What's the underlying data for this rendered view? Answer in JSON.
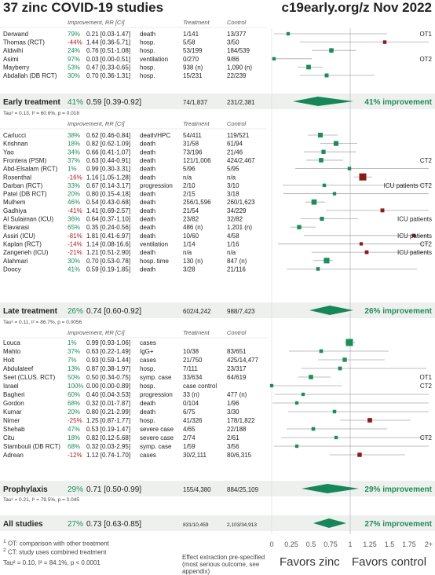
{
  "header": {
    "title": "37 zinc COVID-19 studies",
    "site": "c19early.org/z Nov 2022"
  },
  "columns": {
    "improvement": "Improvement, RR [CI]",
    "treatment": "Treatment",
    "control": "Control"
  },
  "chart_data": {
    "type": "forest",
    "x_ticks": [
      "0",
      "0.25",
      "0.5",
      "0.75",
      "1",
      "1.25",
      "1.5",
      "1.75",
      "2+"
    ],
    "x_range": [
      0,
      2
    ],
    "groups": [
      {
        "name": "Early treatment",
        "studies": [
          {
            "name": "Derwand",
            "improvement": "79%",
            "rr_text": "0.21 [0.03-1.47]",
            "rr": 0.21,
            "lo": 0.03,
            "hi": 1.47,
            "outcome": "death",
            "treatment": "1/141",
            "control": "13/377",
            "note": "OT1"
          },
          {
            "name": "Thomas (RCT)",
            "improvement": "-44%",
            "rr_text": "1.44 [0.36-5.71]",
            "rr": 1.44,
            "lo": 0.36,
            "hi": 5.71,
            "outcome": "hosp.",
            "treatment": "5/58",
            "control": "3/50",
            "note": ""
          },
          {
            "name": "Aldwihi",
            "improvement": "24%",
            "rr_text": "0.76 [0.51-1.08]",
            "rr": 0.76,
            "lo": 0.51,
            "hi": 1.08,
            "outcome": "hosp.",
            "treatment": "53/199",
            "control": "184/539",
            "note": ""
          },
          {
            "name": "Asimi",
            "improvement": "97%",
            "rr_text": "0.03 [0.00-0.51]",
            "rr": 0.03,
            "lo": 0.0,
            "hi": 0.51,
            "outcome": "ventilation",
            "treatment": "0/270",
            "control": "9/86",
            "note": "OT2"
          },
          {
            "name": "Mayberry",
            "improvement": "53%",
            "rr_text": "0.47 [0.33-0.65]",
            "rr": 0.47,
            "lo": 0.33,
            "hi": 0.65,
            "outcome": "hosp.",
            "treatment": "938 (n)",
            "control": "1,090 (n)",
            "note": ""
          },
          {
            "name": "Abdallah (DB RCT)",
            "improvement": "30%",
            "rr_text": "0.70 [0.36-1.31]",
            "rr": 0.7,
            "lo": 0.36,
            "hi": 1.31,
            "outcome": "hosp.",
            "treatment": "15/231",
            "control": "22/239",
            "note": ""
          }
        ],
        "summary": {
          "label": "Early treatment",
          "improvement": "41%",
          "rr_text": "0.59 [0.39-0.92]",
          "rr": 0.59,
          "lo": 0.39,
          "hi": 0.92,
          "treatment": "74/1,837",
          "control": "231/2,381",
          "result": "41% improvement"
        },
        "tau": "Tau² = 0.13, I² = 60.6%, p = 0.018"
      },
      {
        "name": "Late treatment",
        "studies": [
          {
            "name": "Carlucci",
            "improvement": "38%",
            "rr_text": "0.62 [0.46-0.84]",
            "rr": 0.62,
            "lo": 0.46,
            "hi": 0.84,
            "outcome": "death/HPC",
            "treatment": "54/411",
            "control": "119/521",
            "note": ""
          },
          {
            "name": "Krishnan",
            "improvement": "18%",
            "rr_text": "0.82 [0.62-1.09]",
            "rr": 0.82,
            "lo": 0.62,
            "hi": 1.09,
            "outcome": "death",
            "treatment": "31/58",
            "control": "61/94",
            "note": ""
          },
          {
            "name": "Yao",
            "improvement": "34%",
            "rr_text": "0.66 [0.41-1.07]",
            "rr": 0.66,
            "lo": 0.41,
            "hi": 1.07,
            "outcome": "death",
            "treatment": "73/196",
            "control": "21/46",
            "note": ""
          },
          {
            "name": "Frontera (PSM)",
            "improvement": "37%",
            "rr_text": "0.63 [0.44-0.91]",
            "rr": 0.63,
            "lo": 0.44,
            "hi": 0.91,
            "outcome": "death",
            "treatment": "121/1,006",
            "control": "424/2,467",
            "note": "CT2"
          },
          {
            "name": "Abd-Elsalam (RCT)",
            "improvement": "1%",
            "rr_text": "0.99 [0.30-3.31]",
            "rr": 0.99,
            "lo": 0.3,
            "hi": 3.31,
            "outcome": "death",
            "treatment": "5/96",
            "control": "5/95",
            "note": ""
          },
          {
            "name": "Rosenthal",
            "improvement": "-16%",
            "rr_text": "1.16 [1.05-1.28]",
            "rr": 1.16,
            "lo": 1.05,
            "hi": 1.28,
            "outcome": "death",
            "treatment": "n/a",
            "control": "n/a",
            "note": ""
          },
          {
            "name": "Darban (RCT)",
            "improvement": "33%",
            "rr_text": "0.67 [0.14-3.17]",
            "rr": 0.67,
            "lo": 0.14,
            "hi": 3.17,
            "outcome": "progression",
            "treatment": "2/10",
            "control": "3/10",
            "note": "ICU patients CT2"
          },
          {
            "name": "Patel (DB RCT)",
            "improvement": "20%",
            "rr_text": "0.80 [0.15-4.18]",
            "rr": 0.8,
            "lo": 0.15,
            "hi": 4.18,
            "outcome": "death",
            "treatment": "2/15",
            "control": "3/18",
            "note": ""
          },
          {
            "name": "Mulhem",
            "improvement": "46%",
            "rr_text": "0.54 [0.43-0.68]",
            "rr": 0.54,
            "lo": 0.43,
            "hi": 0.68,
            "outcome": "death",
            "treatment": "256/1,596",
            "control": "260/1,623",
            "note": ""
          },
          {
            "name": "Gadhiya",
            "improvement": "-41%",
            "rr_text": "1.41 [0.69-2.57]",
            "rr": 1.41,
            "lo": 0.69,
            "hi": 2.57,
            "outcome": "death",
            "treatment": "21/54",
            "control": "34/229",
            "note": ""
          },
          {
            "name": "Al Sulaiman (ICU)",
            "improvement": "36%",
            "rr_text": "0.64 [0.37-1.10]",
            "rr": 0.64,
            "lo": 0.37,
            "hi": 1.1,
            "outcome": "death",
            "treatment": "23/82",
            "control": "32/82",
            "note": "ICU patients"
          },
          {
            "name": "Elavarasi",
            "improvement": "65%",
            "rr_text": "0.35 [0.24-0.56]",
            "rr": 0.35,
            "lo": 0.24,
            "hi": 0.56,
            "outcome": "death",
            "treatment": "486 (n)",
            "control": "1,201 (n)",
            "note": ""
          },
          {
            "name": "Assiri (ICU)",
            "improvement": "-81%",
            "rr_text": "1.81 [0.41-6.97]",
            "rr": 1.81,
            "lo": 0.41,
            "hi": 6.97,
            "outcome": "death",
            "treatment": "10/60",
            "control": "4/58",
            "note": "ICU patients"
          },
          {
            "name": "Kaplan (RCT)",
            "improvement": "-14%",
            "rr_text": "1.14 [0.08-16.6]",
            "rr": 1.14,
            "lo": 0.08,
            "hi": 16.6,
            "outcome": "ventilation",
            "treatment": "1/14",
            "control": "1/16",
            "note": "CT2"
          },
          {
            "name": "Zangeneh (ICU)",
            "improvement": "-21%",
            "rr_text": "1.21 [0.51-2.90]",
            "rr": 1.21,
            "lo": 0.51,
            "hi": 2.9,
            "outcome": "death",
            "treatment": "n/a",
            "control": "n/a",
            "note": "ICU patients"
          },
          {
            "name": "Alahmari",
            "improvement": "30%",
            "rr_text": "0.70 [0.53-0.78]",
            "rr": 0.7,
            "lo": 0.53,
            "hi": 0.78,
            "outcome": "hosp. time",
            "treatment": "130 (n)",
            "control": "847 (n)",
            "note": ""
          },
          {
            "name": "Doocy",
            "improvement": "41%",
            "rr_text": "0.59 [0.19-1.85]",
            "rr": 0.59,
            "lo": 0.19,
            "hi": 1.85,
            "outcome": "death",
            "treatment": "3/28",
            "control": "21/116",
            "note": ""
          }
        ],
        "summary": {
          "label": "Late treatment",
          "improvement": "26%",
          "rr_text": "0.74 [0.60-0.92]",
          "rr": 0.74,
          "lo": 0.6,
          "hi": 0.92,
          "treatment": "602/4,242",
          "control": "988/7,423",
          "result": "26% improvement"
        },
        "tau": "Tau² = 0.11, I² = 86.7%, p = 0.0056"
      },
      {
        "name": "Prophylaxis",
        "studies": [
          {
            "name": "Louca",
            "improvement": "1%",
            "rr_text": "0.99 [0.93-1.06]",
            "rr": 0.99,
            "lo": 0.93,
            "hi": 1.06,
            "outcome": "cases",
            "treatment": "",
            "control": "",
            "note": ""
          },
          {
            "name": "Mahto",
            "improvement": "37%",
            "rr_text": "0.63 [0.22-1.49]",
            "rr": 0.63,
            "lo": 0.22,
            "hi": 1.49,
            "outcome": "IgG+",
            "treatment": "10/38",
            "control": "83/651",
            "note": ""
          },
          {
            "name": "Holt",
            "improvement": "7%",
            "rr_text": "0.93 [0.59-1.44]",
            "rr": 0.93,
            "lo": 0.59,
            "hi": 1.44,
            "outcome": "cases",
            "treatment": "21/750",
            "control": "425/14,477",
            "note": ""
          },
          {
            "name": "Abdulateef",
            "improvement": "13%",
            "rr_text": "0.87 [0.38-1.97]",
            "rr": 0.87,
            "lo": 0.38,
            "hi": 1.97,
            "outcome": "hosp.",
            "treatment": "7/111",
            "control": "23/317",
            "note": ""
          },
          {
            "name": "Seet (CLUS. RCT)",
            "improvement": "50%",
            "rr_text": "0.50 [0.34-0.75]",
            "rr": 0.5,
            "lo": 0.34,
            "hi": 0.75,
            "outcome": "symp. case",
            "treatment": "33/634",
            "control": "64/619",
            "note": "OT1"
          },
          {
            "name": "Israel",
            "improvement": "100%",
            "rr_text": "0.00 [0.00-0.89]",
            "rr": 0.0,
            "lo": 0.0,
            "hi": 0.89,
            "outcome": "hosp.",
            "treatment": "case control",
            "control": "",
            "note": "CT2"
          },
          {
            "name": "Bagheri",
            "improvement": "60%",
            "rr_text": "0.40 [0.04-3.53]",
            "rr": 0.4,
            "lo": 0.04,
            "hi": 3.53,
            "outcome": "progression",
            "treatment": "33 (n)",
            "control": "477 (n)",
            "note": ""
          },
          {
            "name": "Gordon",
            "improvement": "68%",
            "rr_text": "0.32 [0.01-7.87]",
            "rr": 0.32,
            "lo": 0.01,
            "hi": 7.87,
            "outcome": "death",
            "treatment": "0/104",
            "control": "1/96",
            "note": ""
          },
          {
            "name": "Kumar",
            "improvement": "20%",
            "rr_text": "0.80 [0.21-2.99]",
            "rr": 0.8,
            "lo": 0.21,
            "hi": 2.99,
            "outcome": "death",
            "treatment": "6/75",
            "control": "3/30",
            "note": ""
          },
          {
            "name": "Nimer",
            "improvement": "-25%",
            "rr_text": "1.25 [0.87-1.77]",
            "rr": 1.25,
            "lo": 0.87,
            "hi": 1.77,
            "outcome": "hosp.",
            "treatment": "41/326",
            "control": "178/1,822",
            "note": ""
          },
          {
            "name": "Shehab",
            "improvement": "47%",
            "rr_text": "0.53 [0.19-1.47]",
            "rr": 0.53,
            "lo": 0.19,
            "hi": 1.47,
            "outcome": "severe case",
            "treatment": "4/65",
            "control": "22/188",
            "note": ""
          },
          {
            "name": "Citu",
            "improvement": "18%",
            "rr_text": "0.82 [0.12-5.68]",
            "rr": 0.82,
            "lo": 0.12,
            "hi": 5.68,
            "outcome": "severe case",
            "treatment": "2/74",
            "control": "2/61",
            "note": "CT2"
          },
          {
            "name": "Stambouli (DB RCT)",
            "improvement": "68%",
            "rr_text": "0.32 [0.03-2.95]",
            "rr": 0.32,
            "lo": 0.03,
            "hi": 2.95,
            "outcome": "symp. case",
            "treatment": "1/59",
            "control": "3/56",
            "note": ""
          },
          {
            "name": "Adrean",
            "improvement": "-12%",
            "rr_text": "1.12 [0.74-1.70]",
            "rr": 1.12,
            "lo": 0.74,
            "hi": 1.7,
            "outcome": "cases",
            "treatment": "30/2,111",
            "control": "80/6,315",
            "note": ""
          }
        ],
        "summary": {
          "label": "Prophylaxis",
          "improvement": "29%",
          "rr_text": "0.71 [0.50-0.99]",
          "rr": 0.71,
          "lo": 0.5,
          "hi": 0.99,
          "treatment": "155/4,380",
          "control": "884/25,109",
          "result": "29% improvement"
        },
        "tau": "Tau² = 0.21, I² = 79.5%, p = 0.045"
      }
    ],
    "all": {
      "label": "All studies",
      "improvement": "27%",
      "rr_text": "0.73 [0.63-0.85]",
      "rr": 0.73,
      "lo": 0.63,
      "hi": 0.85,
      "treatment": "831/10,459",
      "control": "2,103/34,913",
      "result": "27% improvement"
    }
  },
  "footnotes": {
    "ot": "OT: comparison with other treatment",
    "ct": "CT: study uses combined treatment",
    "tau_all": "Tau² = 0.10, I² = 84.1%, p < 0.0001",
    "extraction": "Effect extraction pre-specified (most serious outcome, see appendix)"
  },
  "favors": {
    "left": "Favors zinc",
    "right": "Favors control"
  },
  "colors": {
    "benefit": "#1e8c5a",
    "harm": "#8b1a1a",
    "summary": "#15875a",
    "improvement_text": "#1e8c5a",
    "negative_text": "#b01e1e"
  }
}
